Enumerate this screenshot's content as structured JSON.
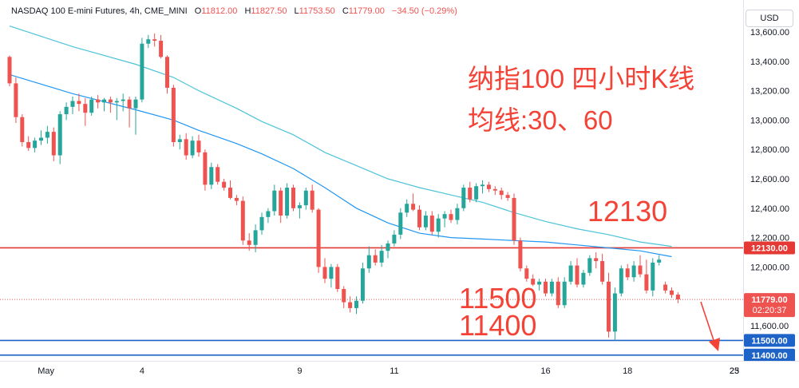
{
  "header": {
    "symbol": "NASDAQ 100 E-mini Futures, 4h, CME_MINI",
    "o_label": "O",
    "o_value": "11812.00",
    "h_label": "H",
    "h_value": "11827.50",
    "l_label": "L",
    "l_value": "11753.50",
    "c_label": "C",
    "c_value": "11779.00",
    "change": "−34.50 (−0.29%)"
  },
  "currency": "USD",
  "annotations": {
    "title_line1": "纳指100 四小时K线",
    "title_line2": "均线:30、60",
    "level_high": "12130",
    "level_low1": "11500",
    "level_low2": "11400"
  },
  "colors": {
    "up": "#26a69a",
    "down": "#ef5350",
    "ma30": "#2196f3",
    "ma60": "#4dc3d9",
    "resistance": "#e53935",
    "support": "#1e63c7",
    "annotation": "#f44336"
  },
  "chart_data": {
    "type": "candlestick",
    "ylim": [
      11430,
      13700
    ],
    "y_ticks": [
      13600,
      13400,
      13200,
      13000,
      12800,
      12600,
      12400,
      12200,
      12000,
      11800,
      11600
    ],
    "x_ticks": [
      "May",
      "4",
      "9",
      "11",
      "16",
      "18",
      "23",
      "25"
    ],
    "price_labels": {
      "resistance": "12130.00",
      "current": "11779.00",
      "countdown": "02:20:37",
      "support1": "11500.00",
      "support2": "11400.00"
    },
    "horizontal_lines": [
      {
        "value": 12130,
        "kind": "resistance"
      },
      {
        "value": 11500,
        "kind": "support"
      },
      {
        "value": 11400,
        "kind": "support"
      }
    ],
    "current_price": 11779,
    "candles": [
      [
        13430,
        13440,
        13230,
        13250
      ],
      [
        13250,
        13290,
        12980,
        13020
      ],
      [
        13020,
        13040,
        12820,
        12850
      ],
      [
        12850,
        12890,
        12790,
        12810
      ],
      [
        12810,
        12880,
        12780,
        12860
      ],
      [
        12860,
        12930,
        12830,
        12880
      ],
      [
        12880,
        12960,
        12840,
        12920
      ],
      [
        12920,
        12950,
        12720,
        12760
      ],
      [
        12760,
        13060,
        12700,
        13040
      ],
      [
        13040,
        13120,
        13000,
        13090
      ],
      [
        13090,
        13160,
        13040,
        13130
      ],
      [
        13130,
        13180,
        13060,
        13110
      ],
      [
        13110,
        13150,
        12960,
        13050
      ],
      [
        13050,
        13160,
        13030,
        13140
      ],
      [
        13140,
        13170,
        13080,
        13120
      ],
      [
        13120,
        13150,
        13060,
        13140
      ],
      [
        13140,
        13160,
        13050,
        13120
      ],
      [
        13120,
        13150,
        13000,
        13130
      ],
      [
        13130,
        13180,
        13060,
        13140
      ],
      [
        13140,
        13160,
        12950,
        13080
      ],
      [
        13080,
        13160,
        12900,
        13140
      ],
      [
        13140,
        13560,
        13120,
        13520
      ],
      [
        13520,
        13580,
        13490,
        13550
      ],
      [
        13550,
        13590,
        13500,
        13540
      ],
      [
        13540,
        13580,
        13420,
        13430
      ],
      [
        13430,
        13440,
        13180,
        13220
      ],
      [
        13220,
        13240,
        12820,
        12850
      ],
      [
        12850,
        12900,
        12800,
        12870
      ],
      [
        12870,
        12910,
        12730,
        12760
      ],
      [
        12760,
        12890,
        12740,
        12860
      ],
      [
        12860,
        12900,
        12750,
        12780
      ],
      [
        12780,
        12800,
        12520,
        12560
      ],
      [
        12560,
        12710,
        12530,
        12680
      ],
      [
        12680,
        12700,
        12560,
        12580
      ],
      [
        12580,
        12600,
        12520,
        12540
      ],
      [
        12540,
        12590,
        12460,
        12470
      ],
      [
        12470,
        12490,
        12420,
        12450
      ],
      [
        12450,
        12480,
        12150,
        12180
      ],
      [
        12180,
        12230,
        12110,
        12150
      ],
      [
        12150,
        12290,
        12100,
        12250
      ],
      [
        12250,
        12370,
        12220,
        12340
      ],
      [
        12340,
        12400,
        12300,
        12380
      ],
      [
        12380,
        12560,
        12350,
        12520
      ],
      [
        12520,
        12540,
        12300,
        12350
      ],
      [
        12350,
        12570,
        12330,
        12540
      ],
      [
        12540,
        12560,
        12380,
        12400
      ],
      [
        12400,
        12440,
        12330,
        12420
      ],
      [
        12420,
        12540,
        12390,
        12520
      ],
      [
        12520,
        12560,
        12370,
        12390
      ],
      [
        12390,
        12400,
        11960,
        12000
      ],
      [
        12000,
        12060,
        11890,
        11920
      ],
      [
        11920,
        12020,
        11860,
        12000
      ],
      [
        12000,
        12020,
        11830,
        11850
      ],
      [
        11850,
        11870,
        11720,
        11760
      ],
      [
        11760,
        11800,
        11690,
        11720
      ],
      [
        11720,
        11800,
        11680,
        11770
      ],
      [
        11770,
        12030,
        11750,
        11990
      ],
      [
        11990,
        12140,
        11960,
        12080
      ],
      [
        12080,
        12120,
        12010,
        12030
      ],
      [
        12030,
        12150,
        12000,
        12110
      ],
      [
        12110,
        12180,
        12060,
        12160
      ],
      [
        12160,
        12250,
        12140,
        12220
      ],
      [
        12220,
        12400,
        12190,
        12370
      ],
      [
        12370,
        12460,
        12340,
        12430
      ],
      [
        12430,
        12500,
        12380,
        12390
      ],
      [
        12390,
        12420,
        12250,
        12270
      ],
      [
        12270,
        12380,
        12250,
        12350
      ],
      [
        12350,
        12380,
        12220,
        12240
      ],
      [
        12240,
        12360,
        12200,
        12330
      ],
      [
        12330,
        12380,
        12270,
        12360
      ],
      [
        12360,
        12390,
        12300,
        12320
      ],
      [
        12320,
        12430,
        12290,
        12400
      ],
      [
        12400,
        12560,
        12380,
        12540
      ],
      [
        12540,
        12580,
        12440,
        12460
      ],
      [
        12460,
        12570,
        12440,
        12550
      ],
      [
        12550,
        12590,
        12500,
        12560
      ],
      [
        12560,
        12580,
        12510,
        12530
      ],
      [
        12530,
        12550,
        12490,
        12520
      ],
      [
        12520,
        12540,
        12460,
        12490
      ],
      [
        12490,
        12510,
        12450,
        12470
      ],
      [
        12470,
        12500,
        12150,
        12180
      ],
      [
        12180,
        12200,
        11970,
        11990
      ],
      [
        11990,
        12010,
        11900,
        11920
      ],
      [
        11920,
        11950,
        11870,
        11880
      ],
      [
        11880,
        11920,
        11840,
        11900
      ],
      [
        11900,
        11920,
        11800,
        11820
      ],
      [
        11820,
        11920,
        11800,
        11900
      ],
      [
        11900,
        11930,
        11720,
        11740
      ],
      [
        11740,
        11930,
        11720,
        11900
      ],
      [
        11900,
        12040,
        11880,
        12010
      ],
      [
        12010,
        12060,
        11860,
        11880
      ],
      [
        11880,
        11980,
        11860,
        11960
      ],
      [
        11960,
        12080,
        11940,
        12060
      ],
      [
        12060,
        12100,
        11990,
        12040
      ],
      [
        12040,
        12090,
        11880,
        11900
      ],
      [
        11900,
        11960,
        11520,
        11560
      ],
      [
        11560,
        11860,
        11500,
        11820
      ],
      [
        11820,
        12010,
        11800,
        11990
      ],
      [
        11990,
        12020,
        11910,
        11930
      ],
      [
        11930,
        12040,
        11900,
        12010
      ],
      [
        12010,
        12080,
        11930,
        11950
      ],
      [
        11950,
        12050,
        11820,
        11840
      ],
      [
        11840,
        12060,
        11800,
        12030
      ],
      [
        12030,
        12080,
        12010,
        12050
      ],
      [
        11880,
        11900,
        11820,
        11840
      ],
      [
        11840,
        11860,
        11790,
        11810
      ],
      [
        11812,
        11827.5,
        11753.5,
        11779
      ]
    ],
    "ma_fast": [
      [
        0,
        13310
      ],
      [
        10,
        13180
      ],
      [
        20,
        13070
      ],
      [
        26,
        13000
      ],
      [
        30,
        12930
      ],
      [
        36,
        12840
      ],
      [
        40,
        12770
      ],
      [
        45,
        12670
      ],
      [
        50,
        12540
      ],
      [
        55,
        12400
      ],
      [
        60,
        12300
      ],
      [
        65,
        12230
      ],
      [
        70,
        12200
      ],
      [
        75,
        12190
      ],
      [
        80,
        12180
      ],
      [
        85,
        12170
      ],
      [
        90,
        12150
      ],
      [
        95,
        12130
      ],
      [
        100,
        12110
      ],
      [
        105,
        12070
      ]
    ],
    "ma_slow": [
      [
        0,
        13640
      ],
      [
        10,
        13500
      ],
      [
        20,
        13380
      ],
      [
        26,
        13290
      ],
      [
        30,
        13200
      ],
      [
        36,
        13080
      ],
      [
        40,
        12990
      ],
      [
        45,
        12900
      ],
      [
        50,
        12780
      ],
      [
        55,
        12690
      ],
      [
        60,
        12600
      ],
      [
        65,
        12540
      ],
      [
        70,
        12490
      ],
      [
        75,
        12440
      ],
      [
        80,
        12370
      ],
      [
        85,
        12310
      ],
      [
        90,
        12260
      ],
      [
        95,
        12220
      ],
      [
        100,
        12170
      ],
      [
        105,
        12140
      ]
    ]
  }
}
